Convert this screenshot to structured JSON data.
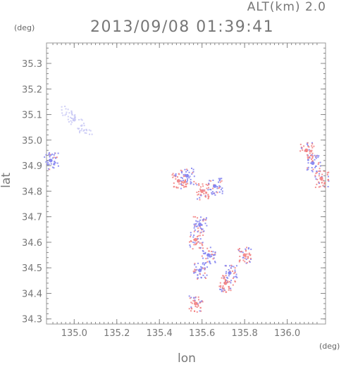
{
  "header": {
    "altitude": "ALT(km) 2.0",
    "timestamp": "2013/09/08 01:39:41"
  },
  "chart_data": {
    "type": "scatter",
    "title": "2013/09/08 01:39:41",
    "xlabel": "lon",
    "ylabel": "lat",
    "x_unit": "(deg)",
    "y_unit": "(deg)",
    "xlim": [
      134.87,
      136.18
    ],
    "ylim": [
      34.28,
      35.38
    ],
    "x_ticks": [
      135.0,
      135.2,
      135.4,
      135.6,
      135.8,
      136.0
    ],
    "x_tick_labels": [
      "135.0",
      "135.2",
      "135.4",
      "135.6",
      "135.8",
      "136.0"
    ],
    "y_ticks": [
      34.3,
      34.4,
      34.5,
      34.6,
      34.7,
      34.8,
      34.9,
      35.0,
      35.1,
      35.2,
      35.3
    ],
    "y_tick_labels": [
      "34.3",
      "34.4",
      "34.5",
      "34.6",
      "34.7",
      "34.8",
      "34.9",
      "35.0",
      "35.1",
      "35.2",
      "35.3"
    ],
    "grid": false,
    "colors": {
      "positive": "#f28080",
      "negative": "#8080f0",
      "light": "#c8c8f5"
    },
    "clusters": [
      {
        "lon": 135.0,
        "lat": 35.08,
        "polarity": "light"
      },
      {
        "lon": 134.89,
        "lat": 34.92,
        "polarity": "negative"
      },
      {
        "lon": 135.49,
        "lat": 34.84,
        "polarity": "positive"
      },
      {
        "lon": 135.53,
        "lat": 34.86,
        "polarity": "negative"
      },
      {
        "lon": 135.66,
        "lat": 34.82,
        "polarity": "negative"
      },
      {
        "lon": 135.6,
        "lat": 34.8,
        "polarity": "positive"
      },
      {
        "lon": 135.59,
        "lat": 34.67,
        "polarity": "negative"
      },
      {
        "lon": 135.57,
        "lat": 34.61,
        "polarity": "positive"
      },
      {
        "lon": 135.63,
        "lat": 34.55,
        "polarity": "negative"
      },
      {
        "lon": 135.59,
        "lat": 34.49,
        "polarity": "negative"
      },
      {
        "lon": 135.73,
        "lat": 34.48,
        "polarity": "negative"
      },
      {
        "lon": 135.71,
        "lat": 34.44,
        "polarity": "positive"
      },
      {
        "lon": 135.57,
        "lat": 34.36,
        "polarity": "positive"
      },
      {
        "lon": 136.12,
        "lat": 34.91,
        "polarity": "negative"
      },
      {
        "lon": 136.16,
        "lat": 34.85,
        "polarity": "positive"
      },
      {
        "lon": 136.09,
        "lat": 34.96,
        "polarity": "positive"
      },
      {
        "lon": 135.8,
        "lat": 34.55,
        "polarity": "positive"
      }
    ]
  }
}
